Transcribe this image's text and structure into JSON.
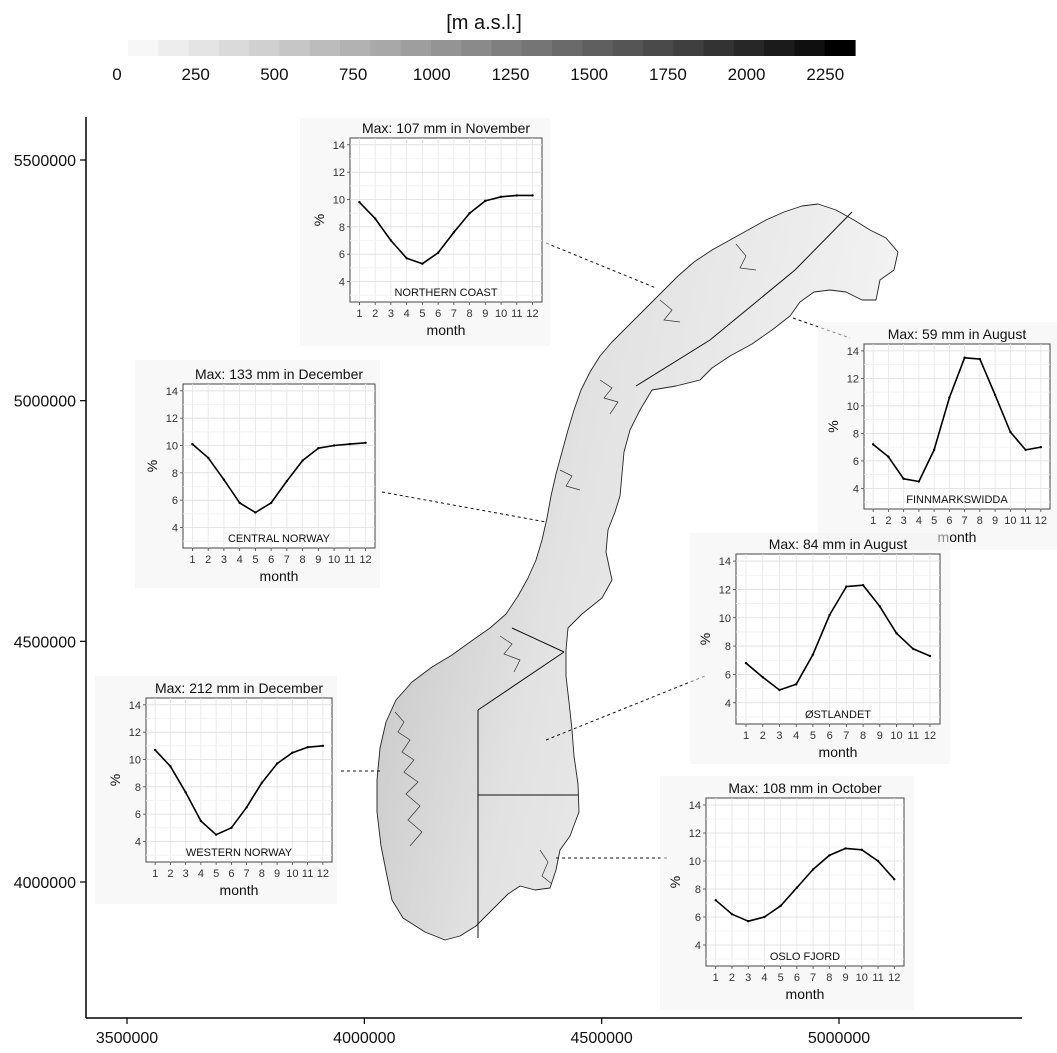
{
  "colorbar": {
    "title": "[m a.s.l.]",
    "tick_labels": [
      "0",
      "250",
      "500",
      "750",
      "1000",
      "1250",
      "1500",
      "1750",
      "2000",
      "2250"
    ],
    "range": [
      0,
      2500
    ],
    "color_low": "#f7f7f7",
    "color_high": "#000000"
  },
  "map": {
    "x_ticks": [
      "3500000",
      "4000000",
      "4500000",
      "5000000"
    ],
    "y_ticks": [
      "5500000",
      "5000000",
      "4500000",
      "4000000"
    ],
    "fill_color": "#e6e6e6",
    "outline_color": "#222222"
  },
  "chart_data": [
    {
      "type": "line",
      "title": "Max: 107 mm in November",
      "region": "NORTHERN COAST",
      "xlabel": "month",
      "ylabel": "%",
      "x": [
        1,
        2,
        3,
        4,
        5,
        6,
        7,
        8,
        9,
        10,
        11,
        12
      ],
      "x_tick_labels": [
        "1",
        "2",
        "3",
        "4",
        "5",
        "6",
        "7",
        "8",
        "9",
        "10",
        "11",
        "12"
      ],
      "y_tick_labels": [
        "4",
        "6",
        "8",
        "10",
        "12",
        "14"
      ],
      "values": [
        9.8,
        8.6,
        7.0,
        5.7,
        5.3,
        6.1,
        7.6,
        9.0,
        9.9,
        10.2,
        10.3,
        10.3
      ],
      "ylim": [
        2.5,
        14.5
      ],
      "grid": true
    },
    {
      "type": "line",
      "title": "Max: 133 mm in December",
      "region": "CENTRAL NORWAY",
      "xlabel": "month",
      "ylabel": "%",
      "x": [
        1,
        2,
        3,
        4,
        5,
        6,
        7,
        8,
        9,
        10,
        11,
        12
      ],
      "x_tick_labels": [
        "1",
        "2",
        "3",
        "4",
        "5",
        "6",
        "7",
        "8",
        "9",
        "10",
        "11",
        "12"
      ],
      "y_tick_labels": [
        "4",
        "6",
        "8",
        "10",
        "12",
        "14"
      ],
      "values": [
        10.1,
        9.1,
        7.5,
        5.8,
        5.1,
        5.8,
        7.4,
        8.9,
        9.8,
        10.0,
        10.1,
        10.2
      ],
      "ylim": [
        2.5,
        14.5
      ],
      "grid": true
    },
    {
      "type": "line",
      "title": "Max: 212 mm in December",
      "region": "WESTERN NORWAY",
      "xlabel": "month",
      "ylabel": "%",
      "x": [
        1,
        2,
        3,
        4,
        5,
        6,
        7,
        8,
        9,
        10,
        11,
        12
      ],
      "x_tick_labels": [
        "1",
        "2",
        "3",
        "4",
        "5",
        "6",
        "7",
        "8",
        "9",
        "10",
        "11",
        "12"
      ],
      "y_tick_labels": [
        "4",
        "6",
        "8",
        "10",
        "12",
        "14"
      ],
      "values": [
        10.7,
        9.5,
        7.6,
        5.5,
        4.5,
        5.0,
        6.5,
        8.3,
        9.7,
        10.5,
        10.9,
        11.0
      ],
      "ylim": [
        2.5,
        14.5
      ],
      "grid": true
    },
    {
      "type": "line",
      "title": "Max: 59 mm in August",
      "region": "FINNMARKSWIDDA",
      "xlabel": "month",
      "ylabel": "%",
      "x": [
        1,
        2,
        3,
        4,
        5,
        6,
        7,
        8,
        9,
        10,
        11,
        12
      ],
      "x_tick_labels": [
        "1",
        "2",
        "3",
        "4",
        "5",
        "6",
        "7",
        "8",
        "9",
        "10",
        "11",
        "12"
      ],
      "y_tick_labels": [
        "4",
        "6",
        "8",
        "10",
        "12",
        "14"
      ],
      "values": [
        7.2,
        6.3,
        4.7,
        4.5,
        6.8,
        10.6,
        13.5,
        13.4,
        10.8,
        8.1,
        6.8,
        7.0
      ],
      "ylim": [
        2.5,
        14.5
      ],
      "grid": true
    },
    {
      "type": "line",
      "title": "Max: 84 mm in August",
      "region": "ØSTLANDET",
      "xlabel": "month",
      "ylabel": "%",
      "x": [
        1,
        2,
        3,
        4,
        5,
        6,
        7,
        8,
        9,
        10,
        11,
        12
      ],
      "x_tick_labels": [
        "1",
        "2",
        "3",
        "4",
        "5",
        "6",
        "7",
        "8",
        "9",
        "10",
        "11",
        "12"
      ],
      "y_tick_labels": [
        "4",
        "6",
        "8",
        "10",
        "12",
        "14"
      ],
      "values": [
        6.8,
        5.8,
        4.9,
        5.3,
        7.4,
        10.2,
        12.2,
        12.3,
        10.8,
        8.9,
        7.8,
        7.3
      ],
      "ylim": [
        2.5,
        14.5
      ],
      "grid": true
    },
    {
      "type": "line",
      "title": "Max: 108 mm in October",
      "region": "OSLO FJORD",
      "xlabel": "month",
      "ylabel": "%",
      "x": [
        1,
        2,
        3,
        4,
        5,
        6,
        7,
        8,
        9,
        10,
        11,
        12
      ],
      "x_tick_labels": [
        "1",
        "2",
        "3",
        "4",
        "5",
        "6",
        "7",
        "8",
        "9",
        "10",
        "11",
        "12"
      ],
      "y_tick_labels": [
        "4",
        "6",
        "8",
        "10",
        "12",
        "14"
      ],
      "values": [
        7.2,
        6.2,
        5.7,
        6.0,
        6.8,
        8.1,
        9.4,
        10.4,
        10.9,
        10.8,
        10.0,
        8.7
      ],
      "ylim": [
        2.5,
        14.5
      ],
      "grid": true
    }
  ]
}
